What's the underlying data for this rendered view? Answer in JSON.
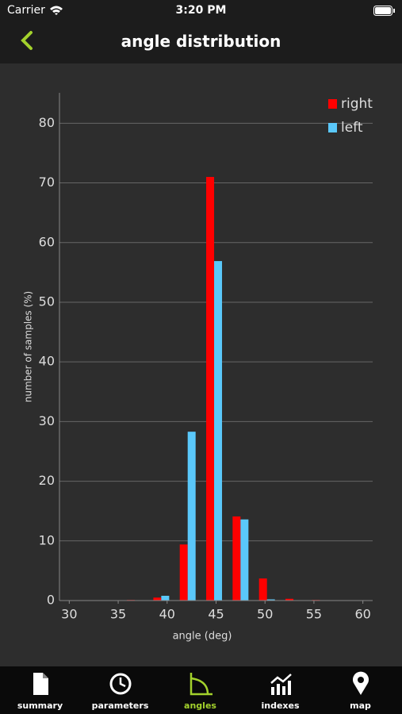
{
  "status": {
    "carrier": "Carrier",
    "time": "3:20 PM"
  },
  "nav": {
    "title": "angle distribution"
  },
  "chart_data": {
    "type": "bar",
    "x_label": "angle (deg)",
    "y_label": "number of samples (%)",
    "x": [
      36.7,
      39.4,
      42.1,
      44.8,
      47.5,
      50.2,
      52.9,
      55.6
    ],
    "series": [
      {
        "name": "right",
        "color": "#ff0000",
        "values": [
          0.1,
          0.5,
          9.4,
          71,
          14.1,
          3.7,
          0.3,
          0.1
        ]
      },
      {
        "name": "left",
        "color": "#5ac8fa",
        "values": [
          0,
          0.8,
          28.3,
          56.9,
          13.6,
          0.2,
          0,
          0
        ]
      }
    ],
    "xlim": [
      29,
      61
    ],
    "xticks": [
      30,
      35,
      40,
      45,
      50,
      55,
      60
    ],
    "ylim": [
      0,
      85.1
    ],
    "yticks": [
      0,
      10,
      20,
      30,
      40,
      50,
      60,
      70,
      80
    ],
    "grid": true,
    "legend": "top-right"
  },
  "tabs": [
    "summary",
    "parameters",
    "angles",
    "indexes",
    "map"
  ]
}
